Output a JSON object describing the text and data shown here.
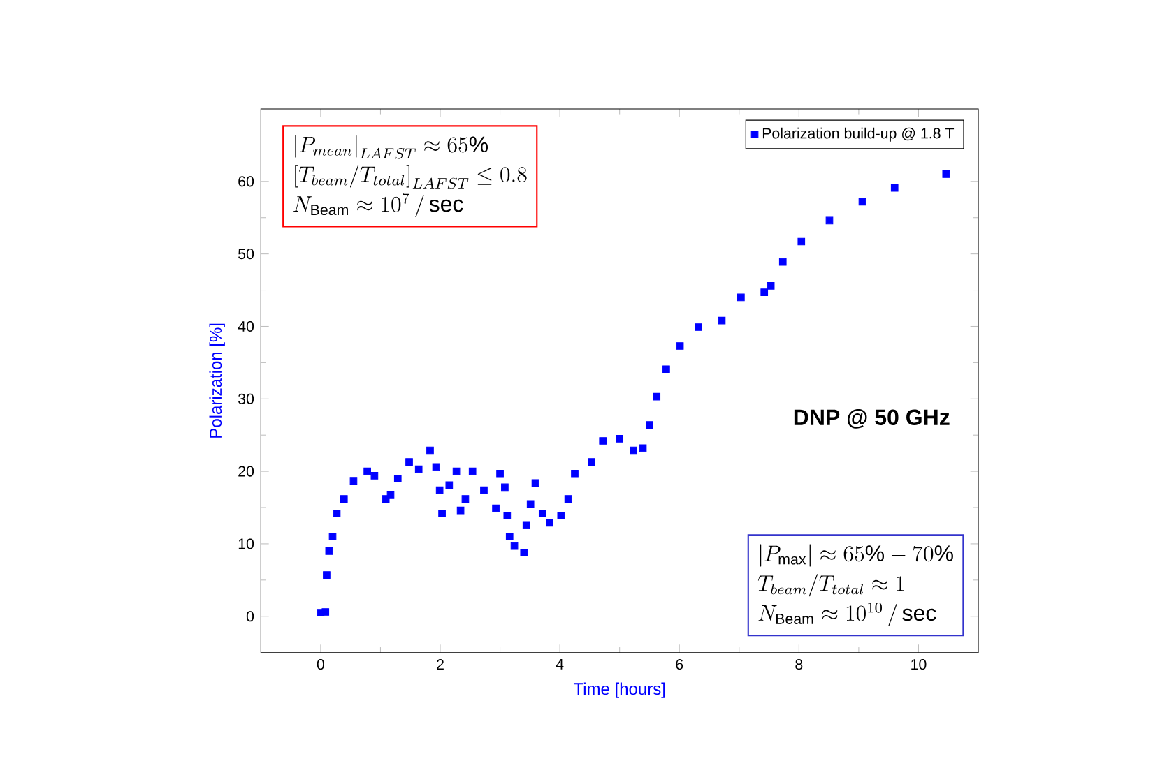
{
  "chart_data": {
    "type": "scatter",
    "xlabel": "Time [hours]",
    "ylabel": "Polarization [%]",
    "xlim": [
      -1,
      11
    ],
    "ylim": [
      -5,
      70
    ],
    "xticks": [
      0,
      2,
      4,
      6,
      8,
      10
    ],
    "yticks": [
      0,
      10,
      20,
      30,
      40,
      50,
      60
    ],
    "marker": "square",
    "legend": "top right",
    "series": [
      {
        "name": "Polarization build-up @ 1.8 T",
        "color": "#0000ff",
        "x": [
          0,
          0.08,
          0.1,
          0.14,
          0.2,
          0.27,
          0.39,
          0.55,
          0.78,
          0.9,
          1.09,
          1.17,
          1.29,
          1.48,
          1.64,
          1.83,
          1.93,
          1.99,
          2.03,
          2.15,
          2.27,
          2.34,
          2.42,
          2.54,
          2.73,
          2.93,
          3.0,
          3.08,
          3.12,
          3.16,
          3.24,
          3.4,
          3.44,
          3.51,
          3.59,
          3.71,
          3.83,
          4.02,
          4.14,
          4.25,
          4.53,
          4.72,
          5.0,
          5.23,
          5.39,
          5.5,
          5.62,
          5.78,
          6.01,
          6.32,
          6.71,
          7.03,
          7.42,
          7.53,
          7.73,
          8.04,
          8.51,
          9.06,
          9.6,
          10.46
        ],
        "values": [
          0.5,
          0.6,
          5.7,
          9.0,
          11,
          14.2,
          16.2,
          18.7,
          20,
          19.4,
          16.2,
          16.8,
          19,
          21.3,
          20.3,
          22.9,
          20.6,
          17.4,
          14.2,
          18.1,
          20,
          14.6,
          16.2,
          20,
          17.4,
          14.9,
          19.7,
          17.8,
          13.9,
          11,
          9.7,
          8.8,
          12.6,
          15.5,
          18.4,
          14.2,
          12.9,
          13.9,
          16.2,
          19.7,
          21.3,
          24.2,
          24.5,
          22.9,
          23.2,
          26.4,
          30.3,
          34.1,
          37.3,
          39.9,
          40.8,
          44.0,
          44.7,
          45.6,
          48.9,
          51.7,
          54.6,
          57.2,
          59.1,
          61.0
        ]
      }
    ],
    "annotations": [
      "DNP @ 50 GHz",
      "\\left|P_{mean}\\right|_{LAFST} \\approx 65\\%",
      "\\left[T_{beam}/T_{total}\\right]_{LAFST} \\leq 0.8",
      "N_{\\mathrm{Beam}} \\approx 10^{7}\\,/\\,\\mathrm{sec}",
      "\\left|P_{\\max}\\right| \\approx 65\\% - 70\\%",
      "T_{beam}/T_{total} \\approx 1",
      "N_{\\mathrm{Beam}} \\approx 10^{10}\\,/\\,\\mathrm{sec}"
    ]
  }
}
